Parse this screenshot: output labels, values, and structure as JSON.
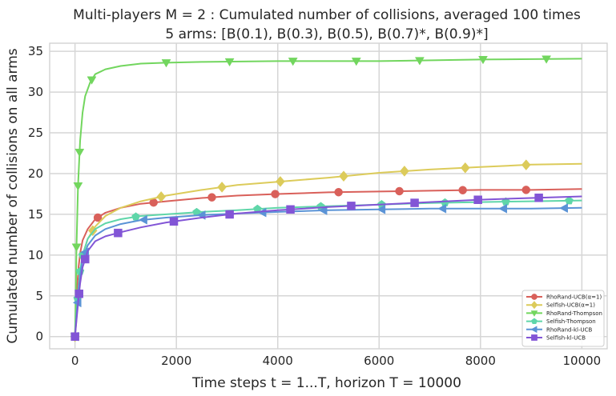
{
  "chart_data": {
    "type": "line",
    "title": "Multi-players M = 2 : Cumulated number of collisions, averaged 100 times",
    "subtitle": "5 arms: [B(0.1), B(0.3), B(0.5), B(0.7)*, B(0.9)*]",
    "xlabel": "Time steps t = 1...T, horizon T = 10000",
    "ylabel": "Cumulated number of collisions on all arms",
    "xlim": [
      -500,
      10500
    ],
    "ylim": [
      -1.5,
      36
    ],
    "xticks": [
      0,
      2000,
      4000,
      6000,
      8000,
      10000
    ],
    "yticks": [
      0,
      5,
      10,
      15,
      20,
      25,
      30,
      35
    ],
    "grid": true,
    "legend_position": "bottom-right",
    "series": [
      {
        "name": "RhoRand-UCB(α=1)",
        "color": "#d9605a",
        "marker": "circle",
        "points": [
          [
            0,
            0
          ],
          [
            20,
            3
          ],
          [
            40,
            6
          ],
          [
            70,
            8.5
          ],
          [
            100,
            10.2
          ],
          [
            150,
            11.8
          ],
          [
            250,
            13.2
          ],
          [
            400,
            14.4
          ],
          [
            600,
            15.2
          ],
          [
            900,
            15.8
          ],
          [
            1300,
            16.3
          ],
          [
            1800,
            16.6
          ],
          [
            2500,
            17
          ],
          [
            3200,
            17.3
          ],
          [
            4000,
            17.5
          ],
          [
            5000,
            17.7
          ],
          [
            6000,
            17.8
          ],
          [
            7000,
            17.9
          ],
          [
            8000,
            18
          ],
          [
            9000,
            18
          ],
          [
            10000,
            18.1
          ]
        ],
        "markers_x": [
          0,
          450,
          1550,
          2700,
          3950,
          5200,
          6400,
          7650,
          8900
        ]
      },
      {
        "name": "Selfish-UCB(α=1)",
        "color": "#dccb5a",
        "marker": "diamond",
        "points": [
          [
            0,
            0
          ],
          [
            20,
            1.5
          ],
          [
            50,
            4
          ],
          [
            100,
            7.5
          ],
          [
            150,
            10
          ],
          [
            250,
            12
          ],
          [
            400,
            13.5
          ],
          [
            600,
            14.8
          ],
          [
            900,
            15.8
          ],
          [
            1300,
            16.6
          ],
          [
            1800,
            17.3
          ],
          [
            2500,
            18
          ],
          [
            3200,
            18.6
          ],
          [
            4000,
            19
          ],
          [
            5000,
            19.5
          ],
          [
            6000,
            20.1
          ],
          [
            7000,
            20.5
          ],
          [
            8000,
            20.8
          ],
          [
            9000,
            21.1
          ],
          [
            10000,
            21.2
          ]
        ],
        "markers_x": [
          0,
          350,
          1700,
          2900,
          4050,
          5300,
          6500,
          7700,
          8900
        ]
      },
      {
        "name": "RhoRand-Thompson",
        "color": "#72d65e",
        "marker": "triangle-down",
        "points": [
          [
            0,
            0
          ],
          [
            10,
            3
          ],
          [
            30,
            11
          ],
          [
            60,
            18.5
          ],
          [
            100,
            24
          ],
          [
            150,
            27.5
          ],
          [
            200,
            29.5
          ],
          [
            300,
            31.2
          ],
          [
            400,
            32.2
          ],
          [
            600,
            32.8
          ],
          [
            900,
            33.2
          ],
          [
            1300,
            33.5
          ],
          [
            1800,
            33.6
          ],
          [
            2500,
            33.7
          ],
          [
            4000,
            33.8
          ],
          [
            6000,
            33.8
          ],
          [
            8000,
            34
          ],
          [
            10000,
            34.1
          ]
        ],
        "markers_x": [
          0,
          30,
          60,
          90,
          330,
          1800,
          3050,
          4300,
          5550,
          6800,
          8050,
          9300
        ]
      },
      {
        "name": "Selfish-Thompson",
        "color": "#5fd6a9",
        "marker": "pentagon",
        "points": [
          [
            0,
            0
          ],
          [
            30,
            3
          ],
          [
            60,
            5.5
          ],
          [
            100,
            8
          ],
          [
            150,
            10
          ],
          [
            250,
            12
          ],
          [
            400,
            13.2
          ],
          [
            600,
            13.9
          ],
          [
            900,
            14.4
          ],
          [
            1300,
            14.8
          ],
          [
            1800,
            15
          ],
          [
            2500,
            15.3
          ],
          [
            3200,
            15.5
          ],
          [
            4000,
            15.8
          ],
          [
            5000,
            16
          ],
          [
            6000,
            16.2
          ],
          [
            7000,
            16.4
          ],
          [
            8000,
            16.5
          ],
          [
            9000,
            16.6
          ],
          [
            10000,
            16.7
          ]
        ],
        "markers_x": [
          0,
          50,
          100,
          150,
          1200,
          2400,
          3600,
          4850,
          6050,
          7300,
          8500,
          9750
        ]
      },
      {
        "name": "RhoRand-kl-UCB",
        "color": "#5a93d6",
        "marker": "triangle-left",
        "points": [
          [
            0,
            0
          ],
          [
            30,
            2.5
          ],
          [
            60,
            5
          ],
          [
            100,
            7.5
          ],
          [
            150,
            9.5
          ],
          [
            250,
            11.2
          ],
          [
            400,
            12.4
          ],
          [
            600,
            13.2
          ],
          [
            900,
            13.8
          ],
          [
            1300,
            14.3
          ],
          [
            1800,
            14.6
          ],
          [
            2500,
            14.9
          ],
          [
            3200,
            15.1
          ],
          [
            4000,
            15.3
          ],
          [
            5000,
            15.5
          ],
          [
            6000,
            15.6
          ],
          [
            7000,
            15.7
          ],
          [
            8000,
            15.7
          ],
          [
            9000,
            15.7
          ],
          [
            10000,
            15.8
          ]
        ],
        "markers_x": [
          0,
          50,
          200,
          1350,
          2500,
          3700,
          4900,
          6050,
          7250,
          8450,
          9650
        ]
      },
      {
        "name": "Selfish-kl-UCB",
        "color": "#8255d6",
        "marker": "square",
        "points": [
          [
            0,
            0
          ],
          [
            30,
            2
          ],
          [
            60,
            4
          ],
          [
            100,
            6.5
          ],
          [
            150,
            8.5
          ],
          [
            250,
            10.5
          ],
          [
            400,
            11.7
          ],
          [
            600,
            12.3
          ],
          [
            900,
            12.8
          ],
          [
            1300,
            13.4
          ],
          [
            1800,
            14
          ],
          [
            2500,
            14.6
          ],
          [
            3200,
            15.1
          ],
          [
            4000,
            15.5
          ],
          [
            5000,
            15.9
          ],
          [
            6000,
            16.2
          ],
          [
            7000,
            16.5
          ],
          [
            8000,
            16.8
          ],
          [
            9000,
            17
          ],
          [
            10000,
            17.2
          ]
        ],
        "markers_x": [
          0,
          80,
          200,
          850,
          1950,
          3050,
          4250,
          5450,
          6700,
          7950,
          9150
        ]
      }
    ]
  }
}
